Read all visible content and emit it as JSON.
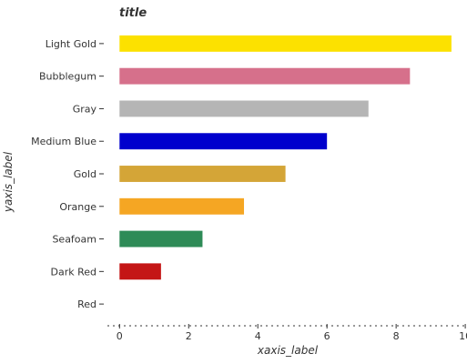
{
  "chart_data": {
    "type": "bar",
    "orientation": "horizontal",
    "title": "title",
    "xlabel": "xaxis_label",
    "ylabel": "yaxis_label",
    "categories": [
      "Red",
      "Dark Red",
      "Seafoam",
      "Orange",
      "Gold",
      "Medium Blue",
      "Gray",
      "Bubblegum",
      "Light Gold"
    ],
    "values": [
      0,
      1.2,
      2.4,
      3.6,
      4.8,
      6.0,
      7.2,
      8.4,
      9.6
    ],
    "colors": [
      "#ee0000",
      "#c41616",
      "#2e8b57",
      "#f5a623",
      "#d4a537",
      "#0000cd",
      "#b5b5b5",
      "#d6708b",
      "#fce100"
    ],
    "xlim": [
      -0.35,
      10.05
    ],
    "xticks": [
      0,
      2,
      4,
      6,
      8,
      10
    ],
    "xtick_labels": [
      "0",
      "2",
      "4",
      "6",
      "8",
      "10"
    ],
    "grid": false,
    "legend": "none"
  }
}
